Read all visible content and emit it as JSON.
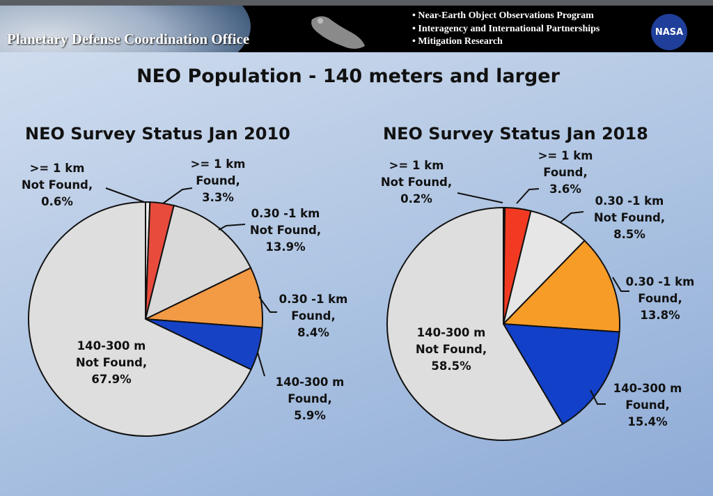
{
  "header": {
    "office": "Planetary Defense Coordination Office",
    "bullets": [
      "Near-Earth Object Observations Program",
      "Interagency and International Partnerships",
      "Mitigation Research"
    ],
    "logo": "NASA"
  },
  "title": "NEO Population - 140 meters and larger",
  "chart_data": [
    {
      "type": "pie",
      "title": "NEO Survey Status Jan 2010",
      "start": "top",
      "direction": "clockwise",
      "slices": [
        {
          "label": ">= 1 km Not Found",
          "l1": ">= 1 km",
          "l2": "Not Found,",
          "l3": "0.6%",
          "value": 0.6,
          "color": "#ececec"
        },
        {
          "label": ">= 1 km Found",
          "l1": ">= 1 km",
          "l2": "Found,",
          "l3": "3.3%",
          "value": 3.3,
          "color": "#e84b3c"
        },
        {
          "label": "0.30 -1 km Not Found",
          "l1": "0.30 -1 km",
          "l2": "Not Found,",
          "l3": "13.9%",
          "value": 13.9,
          "color": "#d9d9d9"
        },
        {
          "label": "0.30 -1 km Found",
          "l1": "0.30 -1 km",
          "l2": "Found,",
          "l3": "8.4%",
          "value": 8.4,
          "color": "#f39a45"
        },
        {
          "label": "140-300 m Found",
          "l1": "140-300 m",
          "l2": "Found,",
          "l3": "5.9%",
          "value": 5.9,
          "color": "#1642c6"
        },
        {
          "label": "140-300 m Not Found",
          "l1": "140-300 m",
          "l2": "Not Found,",
          "l3": "67.9%",
          "value": 67.9,
          "color": "#dedede"
        }
      ]
    },
    {
      "type": "pie",
      "title": "NEO Survey Status Jan 2018",
      "start": "top",
      "direction": "clockwise",
      "slices": [
        {
          "label": ">= 1 km Not Found",
          "l1": ">= 1 km",
          "l2": "Not Found,",
          "l3": "0.2%",
          "value": 0.2,
          "color": "#ececec"
        },
        {
          "label": ">= 1 km Found",
          "l1": ">= 1 km",
          "l2": "Found,",
          "l3": "3.6%",
          "value": 3.6,
          "color": "#f23a22"
        },
        {
          "label": "0.30 -1 km Not Found",
          "l1": "0.30 -1 km",
          "l2": "Not Found,",
          "l3": "8.5%",
          "value": 8.5,
          "color": "#e6e6e6"
        },
        {
          "label": "0.30 -1 km Found",
          "l1": "0.30 -1 km",
          "l2": "Found,",
          "l3": "13.8%",
          "value": 13.8,
          "color": "#f89c28"
        },
        {
          "label": "140-300 m Found",
          "l1": "140-300 m",
          "l2": "Found,",
          "l3": "15.4%",
          "value": 15.4,
          "color": "#1240c8"
        },
        {
          "label": "140-300 m Not Found",
          "l1": "140-300 m",
          "l2": "Not Found,",
          "l3": "58.5%",
          "value": 58.5,
          "color": "#dedede"
        }
      ]
    }
  ]
}
